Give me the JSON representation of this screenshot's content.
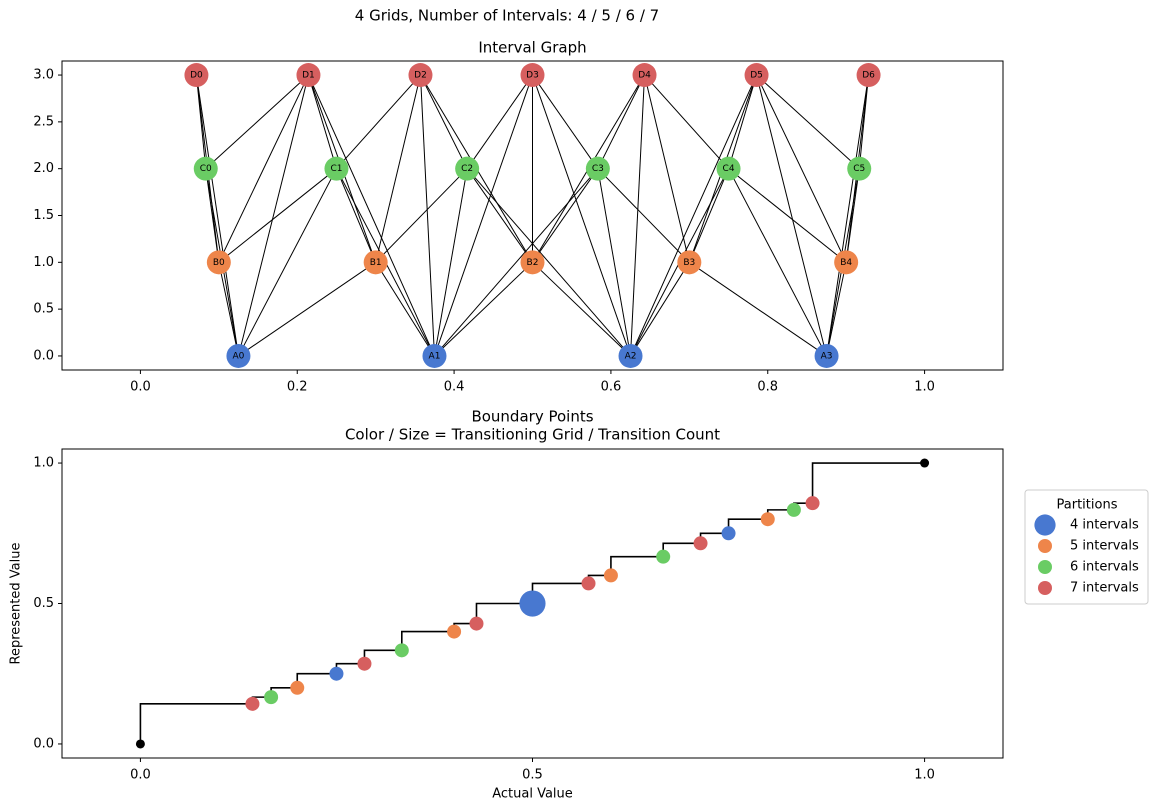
{
  "title": "4 Grids, Number of Intervals: 4 / 5 / 6 / 7",
  "chart_data": [
    {
      "type": "graph",
      "title": "Interval Graph",
      "xlim": [
        -0.1,
        1.1
      ],
      "ylim": [
        -0.15,
        3.15
      ],
      "xticks": [
        {
          "value": 0,
          "label": "0.0"
        },
        0.2,
        0.4,
        0.6,
        0.8,
        {
          "value": 1,
          "label": "1.0"
        }
      ],
      "yticks": [
        {
          "value": 0,
          "label": "0.0"
        },
        0.5,
        {
          "value": 1,
          "label": "1.0"
        },
        1.5,
        {
          "value": 2,
          "label": "2.0"
        },
        2.5,
        {
          "value": 3,
          "label": "3.0"
        }
      ],
      "series": [
        {
          "color": "#4878d0",
          "labels": [
            "A0",
            "A1",
            "A2",
            "A3"
          ],
          "x": [
            0.125,
            0.375,
            0.625,
            0.875
          ],
          "y": [
            0,
            0,
            0,
            0
          ]
        },
        {
          "color": "#ee854a",
          "labels": [
            "B0",
            "B1",
            "B2",
            "B3",
            "B4"
          ],
          "x": [
            0.1,
            0.3,
            0.5,
            0.7,
            0.9
          ],
          "y": [
            1,
            1,
            1,
            1,
            1
          ]
        },
        {
          "color": "#6acc64",
          "labels": [
            "C0",
            "C1",
            "C2",
            "C3",
            "C4",
            "C5"
          ],
          "x": [
            0.08333,
            0.25,
            0.41667,
            0.58333,
            0.75,
            0.91667
          ],
          "y": [
            2,
            2,
            2,
            2,
            2,
            2
          ]
        },
        {
          "color": "#d65f5f",
          "labels": [
            "D0",
            "D1",
            "D2",
            "D3",
            "D4",
            "D5",
            "D6"
          ],
          "x": [
            0.07143,
            0.21429,
            0.35714,
            0.5,
            0.64286,
            0.78571,
            0.92857
          ],
          "y": [
            3,
            3,
            3,
            3,
            3,
            3,
            3
          ]
        }
      ]
    },
    {
      "type": "scatter",
      "title": "Boundary Points",
      "subtitle": "Color / Size = Transitioning Grid / Transition Count",
      "x_label": "Actual Value",
      "y_label": "Represented Value",
      "xlim": [
        -0.1,
        1.1
      ],
      "ylim": [
        -0.05,
        1.05
      ],
      "xticks": [
        {
          "value": 0,
          "label": "0.0"
        },
        0.5,
        {
          "value": 1,
          "label": "1.0"
        }
      ],
      "yticks": [
        {
          "value": 0,
          "label": "0.0"
        },
        0.5,
        {
          "value": 1,
          "label": "1.0"
        }
      ],
      "legend_title": "Partitions",
      "legend": "right",
      "series": [
        {
          "type": "step",
          "color": "#000000",
          "x": [
            0,
            0.14286,
            0.16667,
            0.2,
            0.25,
            0.28571,
            0.33333,
            0.4,
            0.42857,
            0.5,
            0.57143,
            0.6,
            0.66667,
            0.71429,
            0.75,
            0.8,
            0.83333,
            0.85714,
            1
          ],
          "y": [
            0,
            0.14286,
            0.16667,
            0.2,
            0.25,
            0.28571,
            0.33333,
            0.4,
            0.42857,
            0.5,
            0.57143,
            0.6,
            0.66667,
            0.71429,
            0.75,
            0.8,
            0.83333,
            0.85714,
            1
          ]
        },
        {
          "color": "#000000",
          "x": [
            0,
            1
          ],
          "y": [
            0,
            1
          ]
        },
        {
          "name": "4 intervals",
          "color": "#4878d0",
          "x": [
            0.25,
            0.5,
            0.75
          ],
          "y": [
            0.25,
            0.5,
            0.75
          ],
          "sizes": [
            1,
            2,
            1
          ]
        },
        {
          "name": "5 intervals",
          "color": "#ee854a",
          "x": [
            0.2,
            0.4,
            0.6,
            0.8
          ],
          "y": [
            0.2,
            0.4,
            0.6,
            0.8
          ],
          "sizes": [
            1,
            1,
            1,
            1
          ]
        },
        {
          "name": "6 intervals",
          "color": "#6acc64",
          "x": [
            0.16667,
            0.33333,
            0.66667,
            0.83333
          ],
          "y": [
            0.16667,
            0.33333,
            0.66667,
            0.83333
          ],
          "sizes": [
            1,
            1,
            1,
            1
          ]
        },
        {
          "name": "7 intervals",
          "color": "#d65f5f",
          "x": [
            0.14286,
            0.28571,
            0.42857,
            0.57143,
            0.71429,
            0.85714
          ],
          "y": [
            0.14286,
            0.28571,
            0.42857,
            0.57143,
            0.71429,
            0.85714
          ],
          "sizes": [
            1,
            1,
            1,
            1,
            1,
            1
          ]
        }
      ]
    }
  ]
}
